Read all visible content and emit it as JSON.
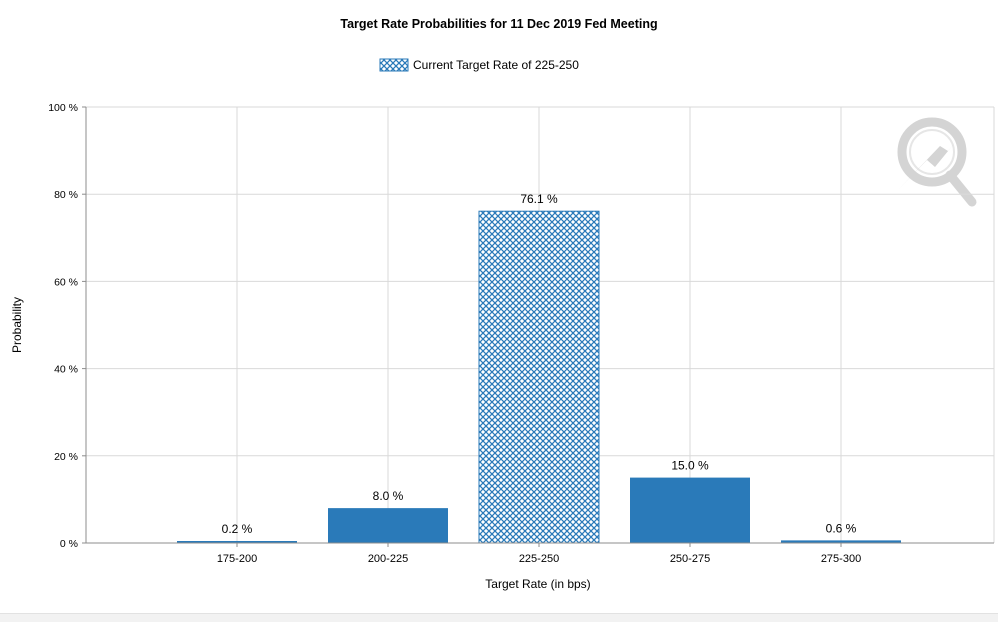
{
  "colors": {
    "bar_fill": "#2a7ab9",
    "hatch_line": "#2a7ab9",
    "grid": "#d9d9d9",
    "axis": "#8c8c8c",
    "watermark": "#d4d4d4"
  },
  "icons": {
    "watermark": "quikstrike-logo-icon"
  },
  "chart_data": {
    "type": "bar",
    "title": "Target Rate Probabilities for 11 Dec 2019 Fed Meeting",
    "xlabel": "Target Rate (in bps)",
    "ylabel": "Probability",
    "categories": [
      "175-200",
      "200-225",
      "225-250",
      "250-275",
      "275-300"
    ],
    "values": [
      0.2,
      8.0,
      76.1,
      15.0,
      0.6
    ],
    "value_labels": [
      "0.2 %",
      "8.0 %",
      "76.1 %",
      "15.0 %",
      "0.6 %"
    ],
    "highlight_index": 2,
    "ylim": [
      0,
      100
    ],
    "yticks": [
      0,
      20,
      40,
      60,
      80,
      100
    ],
    "ytick_labels": [
      "0 %",
      "20 %",
      "40 %",
      "60 %",
      "80 %",
      "100 %"
    ],
    "grid": true,
    "legend": {
      "position": "top-center",
      "entries": [
        {
          "label": "Current Target Rate of 225-250",
          "pattern": "crosshatch"
        }
      ]
    }
  }
}
